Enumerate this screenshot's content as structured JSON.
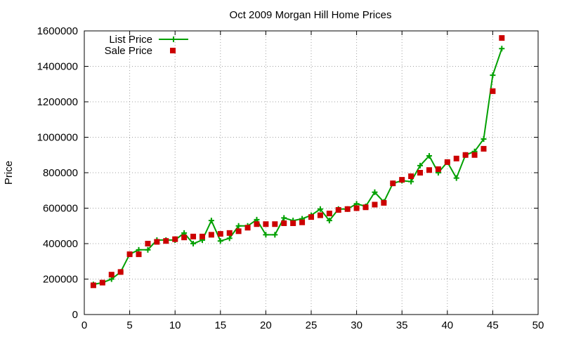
{
  "chart_data": {
    "type": "line",
    "title": "Oct 2009 Morgan Hill Home Prices",
    "xlabel": "",
    "ylabel": "Price",
    "xlim": [
      0,
      50
    ],
    "ylim": [
      0,
      1600000
    ],
    "xticks": [
      0,
      5,
      10,
      15,
      20,
      25,
      30,
      35,
      40,
      45,
      50
    ],
    "yticks": [
      0,
      200000,
      400000,
      600000,
      800000,
      1000000,
      1200000,
      1400000,
      1600000
    ],
    "grid": true,
    "legend_position": "top-left",
    "series": [
      {
        "name": "List Price",
        "style": "line-with-plus-markers",
        "color": "#00a000",
        "x": [
          1,
          2,
          3,
          4,
          5,
          6,
          7,
          8,
          9,
          10,
          11,
          12,
          13,
          14,
          15,
          16,
          17,
          18,
          19,
          20,
          21,
          22,
          23,
          24,
          25,
          26,
          27,
          28,
          29,
          30,
          31,
          32,
          33,
          34,
          35,
          36,
          37,
          38,
          39,
          40,
          41,
          42,
          43,
          44,
          45,
          46
        ],
        "values": [
          170000,
          180000,
          200000,
          240000,
          340000,
          365000,
          365000,
          420000,
          420000,
          420000,
          460000,
          400000,
          420000,
          530000,
          415000,
          430000,
          500000,
          500000,
          535000,
          450000,
          450000,
          545000,
          530000,
          540000,
          560000,
          595000,
          530000,
          595000,
          595000,
          625000,
          610000,
          690000,
          635000,
          740000,
          755000,
          750000,
          840000,
          895000,
          800000,
          860000,
          770000,
          900000,
          920000,
          990000,
          1350000,
          1500000
        ]
      },
      {
        "name": "Sale Price",
        "style": "square-markers",
        "color": "#cc0000",
        "x": [
          1,
          2,
          3,
          4,
          5,
          6,
          7,
          8,
          9,
          10,
          11,
          12,
          13,
          14,
          15,
          16,
          17,
          18,
          19,
          20,
          21,
          22,
          23,
          24,
          25,
          26,
          27,
          28,
          29,
          30,
          31,
          32,
          33,
          34,
          35,
          36,
          37,
          38,
          39,
          40,
          41,
          42,
          43,
          44,
          45,
          46
        ],
        "values": [
          165000,
          180000,
          225000,
          240000,
          340000,
          340000,
          400000,
          410000,
          415000,
          425000,
          435000,
          440000,
          440000,
          450000,
          455000,
          460000,
          470000,
          490000,
          510000,
          510000,
          510000,
          515000,
          515000,
          520000,
          550000,
          560000,
          570000,
          590000,
          595000,
          600000,
          605000,
          620000,
          630000,
          740000,
          760000,
          780000,
          800000,
          815000,
          820000,
          860000,
          880000,
          900000,
          900000,
          935000,
          1260000,
          1560000
        ]
      }
    ]
  }
}
